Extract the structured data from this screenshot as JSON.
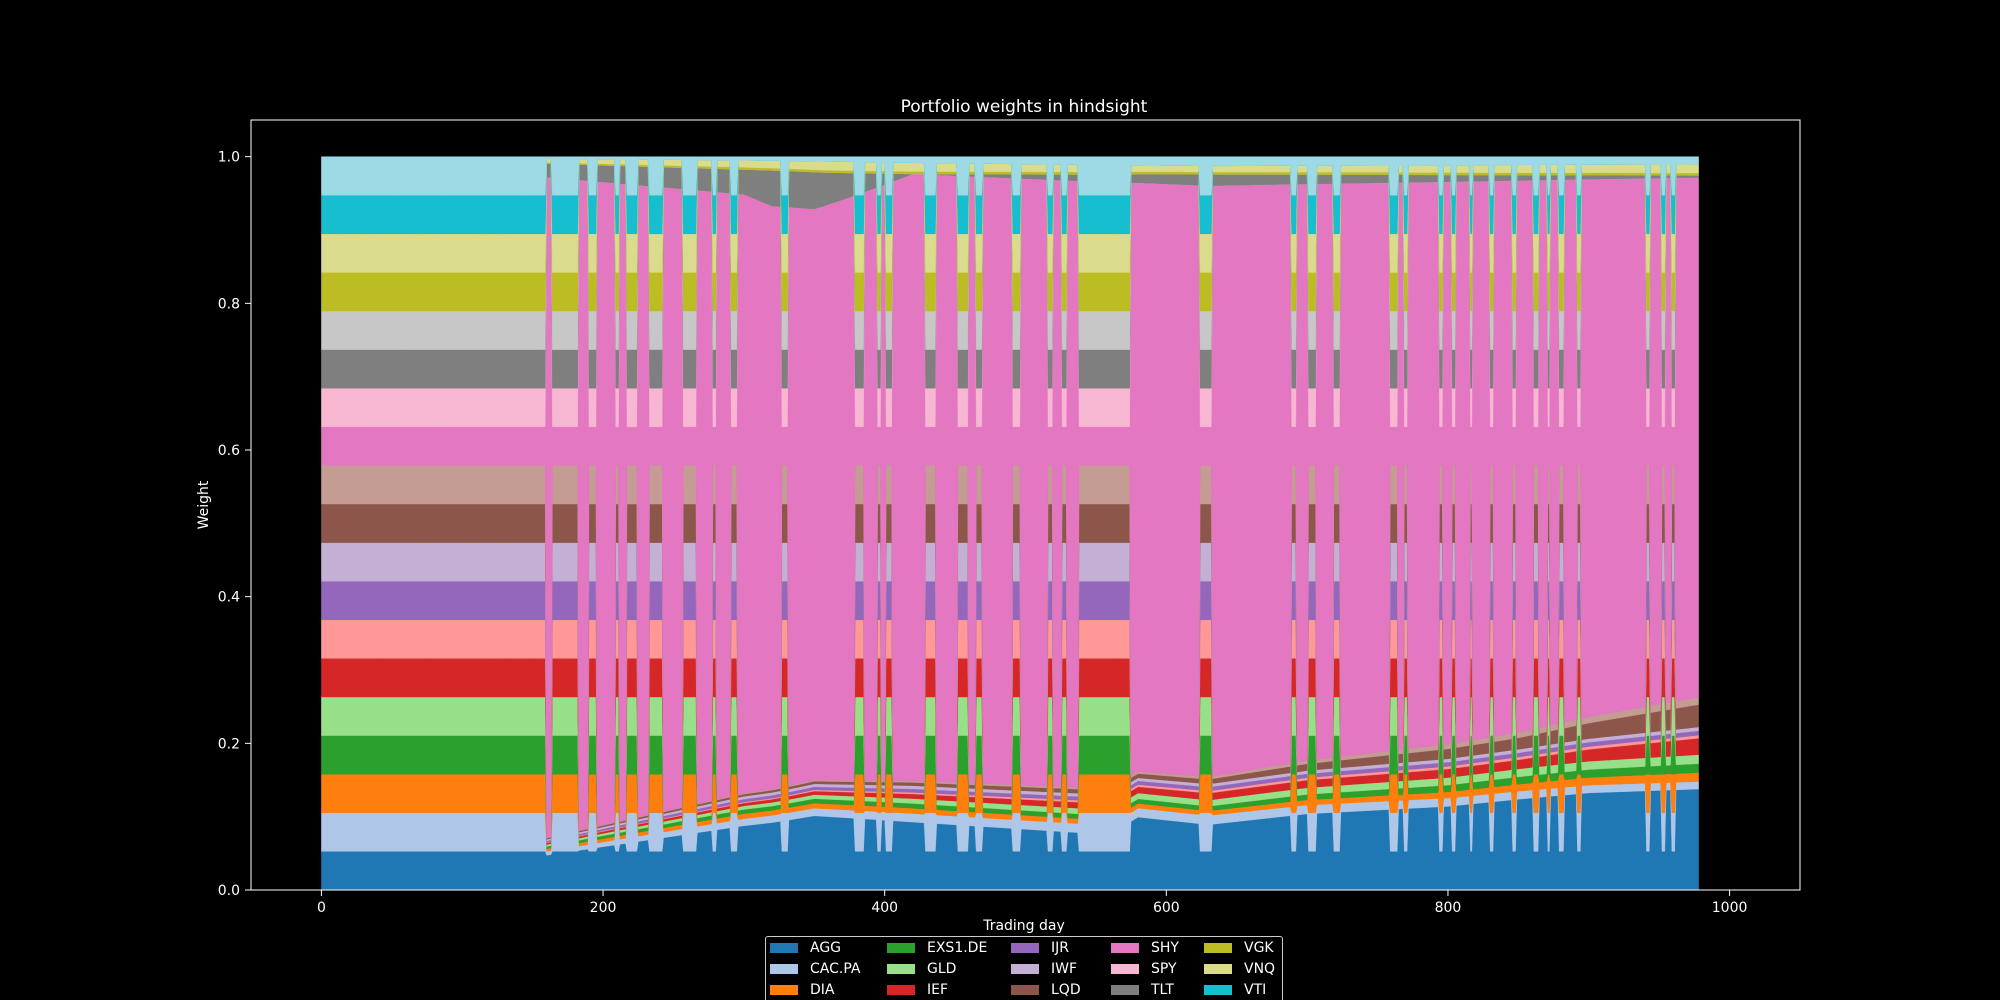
{
  "chart_data": {
    "type": "area",
    "stacked": true,
    "title": "Portfolio weights in hindsight",
    "xlabel": "Trading day",
    "ylabel": "Weight",
    "xlim": [
      -50,
      1050
    ],
    "ylim": [
      0,
      1.05
    ],
    "xticks": [
      0,
      200,
      400,
      600,
      800,
      1000
    ],
    "xtick_labels": [
      "0",
      "200",
      "400",
      "600",
      "800",
      "1000"
    ],
    "yticks": [
      0.0,
      0.2,
      0.4,
      0.6,
      0.8,
      1.0
    ],
    "ytick_labels": [
      "0.0",
      "0.2",
      "0.4",
      "0.6",
      "0.8",
      "1.0"
    ],
    "grid": false,
    "legend_position": "bottom-center",
    "legend_columns": 5,
    "x_range": [
      0,
      978
    ],
    "equal_weight_per_asset": 0.05,
    "concentrated_asset": "SHY",
    "series": [
      {
        "name": "AGG",
        "color": "#1f77b4",
        "concentrated_weight": [
          [
            0,
            0.0
          ],
          [
            300,
            0.09
          ],
          [
            350,
            0.1
          ],
          [
            420,
            0.085
          ],
          [
            560,
            0.07
          ],
          [
            580,
            0.095
          ],
          [
            630,
            0.085
          ],
          [
            700,
            0.1
          ],
          [
            800,
            0.11
          ],
          [
            900,
            0.13
          ],
          [
            978,
            0.135
          ]
        ]
      },
      {
        "name": "CAC.PA",
        "color": "#aec7e8",
        "concentrated_weight": [
          [
            0,
            0.0
          ],
          [
            300,
            0.01
          ],
          [
            630,
            0.012
          ],
          [
            978,
            0.01
          ]
        ]
      },
      {
        "name": "DIA",
        "color": "#ff7f0e",
        "concentrated_weight": [
          [
            0,
            0.0
          ],
          [
            300,
            0.007
          ],
          [
            630,
            0.006
          ],
          [
            800,
            0.008
          ],
          [
            978,
            0.012
          ]
        ]
      },
      {
        "name": "EXS1.DE",
        "color": "#2ca02c",
        "concentrated_weight": [
          [
            0,
            0.0
          ],
          [
            300,
            0.006
          ],
          [
            630,
            0.006
          ],
          [
            978,
            0.012
          ]
        ]
      },
      {
        "name": "GLD",
        "color": "#98df8a",
        "concentrated_weight": [
          [
            0,
            0.0
          ],
          [
            300,
            0.005
          ],
          [
            630,
            0.008
          ],
          [
            978,
            0.012
          ]
        ]
      },
      {
        "name": "IEF",
        "color": "#d62728",
        "concentrated_weight": [
          [
            0,
            0.0
          ],
          [
            300,
            0.004
          ],
          [
            630,
            0.009
          ],
          [
            850,
            0.012
          ],
          [
            978,
            0.022
          ]
        ]
      },
      {
        "name": "IEF",
        "color": "#ff9896",
        "concentrated_weight": [
          [
            0,
            0.0
          ],
          [
            630,
            0.003
          ],
          [
            978,
            0.004
          ]
        ]
      },
      {
        "name": "IJR",
        "color": "#9467bd",
        "concentrated_weight": [
          [
            0,
            0.0
          ],
          [
            300,
            0.004
          ],
          [
            630,
            0.005
          ],
          [
            978,
            0.006
          ]
        ]
      },
      {
        "name": "IWF",
        "color": "#c5b0d5",
        "concentrated_weight": [
          [
            0,
            0.0
          ],
          [
            300,
            0.004
          ],
          [
            630,
            0.004
          ],
          [
            978,
            0.005
          ]
        ]
      },
      {
        "name": "LQD",
        "color": "#8c564b",
        "concentrated_weight": [
          [
            0,
            0.0
          ],
          [
            300,
            0.003
          ],
          [
            630,
            0.006
          ],
          [
            850,
            0.015
          ],
          [
            978,
            0.03
          ]
        ]
      },
      {
        "name": "LQD",
        "color": "#c49c94",
        "concentrated_weight": [
          [
            0,
            0.0
          ],
          [
            630,
            0.003
          ],
          [
            978,
            0.01
          ]
        ]
      },
      {
        "name": "SHY",
        "color": "#e377c2",
        "concentrated_weight": [
          [
            0,
            1.0
          ],
          [
            300,
            0.84
          ],
          [
            330,
            0.8
          ],
          [
            350,
            0.77
          ],
          [
            420,
            0.76
          ],
          [
            630,
            0.77
          ],
          [
            800,
            0.74
          ],
          [
            900,
            0.72
          ],
          [
            978,
            0.695
          ]
        ]
      },
      {
        "name": "SPY",
        "color": "#f7b6d2",
        "concentrated_weight": [
          [
            0,
            0.0
          ],
          [
            978,
            0.0
          ]
        ]
      },
      {
        "name": "TLT",
        "color": "#7f7f7f",
        "concentrated_weight": [
          [
            0,
            0.0
          ],
          [
            300,
            0.035
          ],
          [
            320,
            0.05
          ],
          [
            350,
            0.05
          ],
          [
            420,
            0.0
          ],
          [
            630,
            0.015
          ],
          [
            978,
            0.003
          ]
        ]
      },
      {
        "name": "TLT",
        "color": "#c7c7c7",
        "concentrated_weight": [
          [
            0,
            0.0
          ],
          [
            978,
            0.0
          ]
        ]
      },
      {
        "name": "VGK",
        "color": "#bcbd22",
        "concentrated_weight": [
          [
            0,
            0.0
          ],
          [
            300,
            0.003
          ],
          [
            978,
            0.003
          ]
        ]
      },
      {
        "name": "VNQ",
        "color": "#dbdb8d",
        "concentrated_weight": [
          [
            0,
            0.0
          ],
          [
            300,
            0.01
          ],
          [
            360,
            0.012
          ],
          [
            630,
            0.008
          ],
          [
            978,
            0.012
          ]
        ]
      },
      {
        "name": "VTI",
        "color": "#17becf",
        "concentrated_weight": [
          [
            0,
            0.0
          ],
          [
            978,
            0.0
          ]
        ]
      },
      {
        "name": "VTI",
        "color": "#9edae5",
        "concentrated_weight": [
          [
            0,
            0.0
          ],
          [
            300,
            0.005
          ],
          [
            630,
            0.012
          ],
          [
            978,
            0.01
          ]
        ]
      }
    ],
    "concentrated_intervals": [
      [
        160,
        163
      ],
      [
        183,
        189
      ],
      [
        196,
        208
      ],
      [
        212,
        216
      ],
      [
        225,
        232
      ],
      [
        243,
        256
      ],
      [
        267,
        277
      ],
      [
        281,
        290
      ],
      [
        296,
        326
      ],
      [
        332,
        378
      ],
      [
        386,
        394
      ],
      [
        398,
        400
      ],
      [
        406,
        428
      ],
      [
        437,
        451
      ],
      [
        460,
        464
      ],
      [
        470,
        490
      ],
      [
        497,
        515
      ],
      [
        520,
        525
      ],
      [
        530,
        537
      ],
      [
        575,
        623
      ],
      [
        633,
        688
      ],
      [
        693,
        700
      ],
      [
        707,
        718
      ],
      [
        724,
        758
      ],
      [
        765,
        768
      ],
      [
        772,
        793
      ],
      [
        797,
        802
      ],
      [
        806,
        815
      ],
      [
        818,
        829
      ],
      [
        833,
        845
      ],
      [
        849,
        860
      ],
      [
        865,
        870
      ],
      [
        873,
        878
      ],
      [
        883,
        891
      ],
      [
        895,
        940
      ],
      [
        944,
        951
      ],
      [
        955,
        958
      ],
      [
        962,
        978
      ]
    ],
    "legend": [
      {
        "label": "AGG",
        "color": "#1f77b4"
      },
      {
        "label": "CAC.PA",
        "color": "#aec7e8"
      },
      {
        "label": "DIA",
        "color": "#ff7f0e"
      },
      {
        "label": "EXS1.DE",
        "color": "#2ca02c"
      },
      {
        "label": "GLD",
        "color": "#98df8a"
      },
      {
        "label": "IEF",
        "color": "#d62728"
      },
      {
        "label": "IJR",
        "color": "#9467bd"
      },
      {
        "label": "IWF",
        "color": "#c5b0d5"
      },
      {
        "label": "LQD",
        "color": "#8c564b"
      },
      {
        "label": "SHY",
        "color": "#e377c2"
      },
      {
        "label": "SPY",
        "color": "#f7b6d2"
      },
      {
        "label": "TLT",
        "color": "#7f7f7f"
      },
      {
        "label": "VGK",
        "color": "#bcbd22"
      },
      {
        "label": "VNQ",
        "color": "#dbdb8d"
      },
      {
        "label": "VTI",
        "color": "#17becf"
      }
    ]
  }
}
